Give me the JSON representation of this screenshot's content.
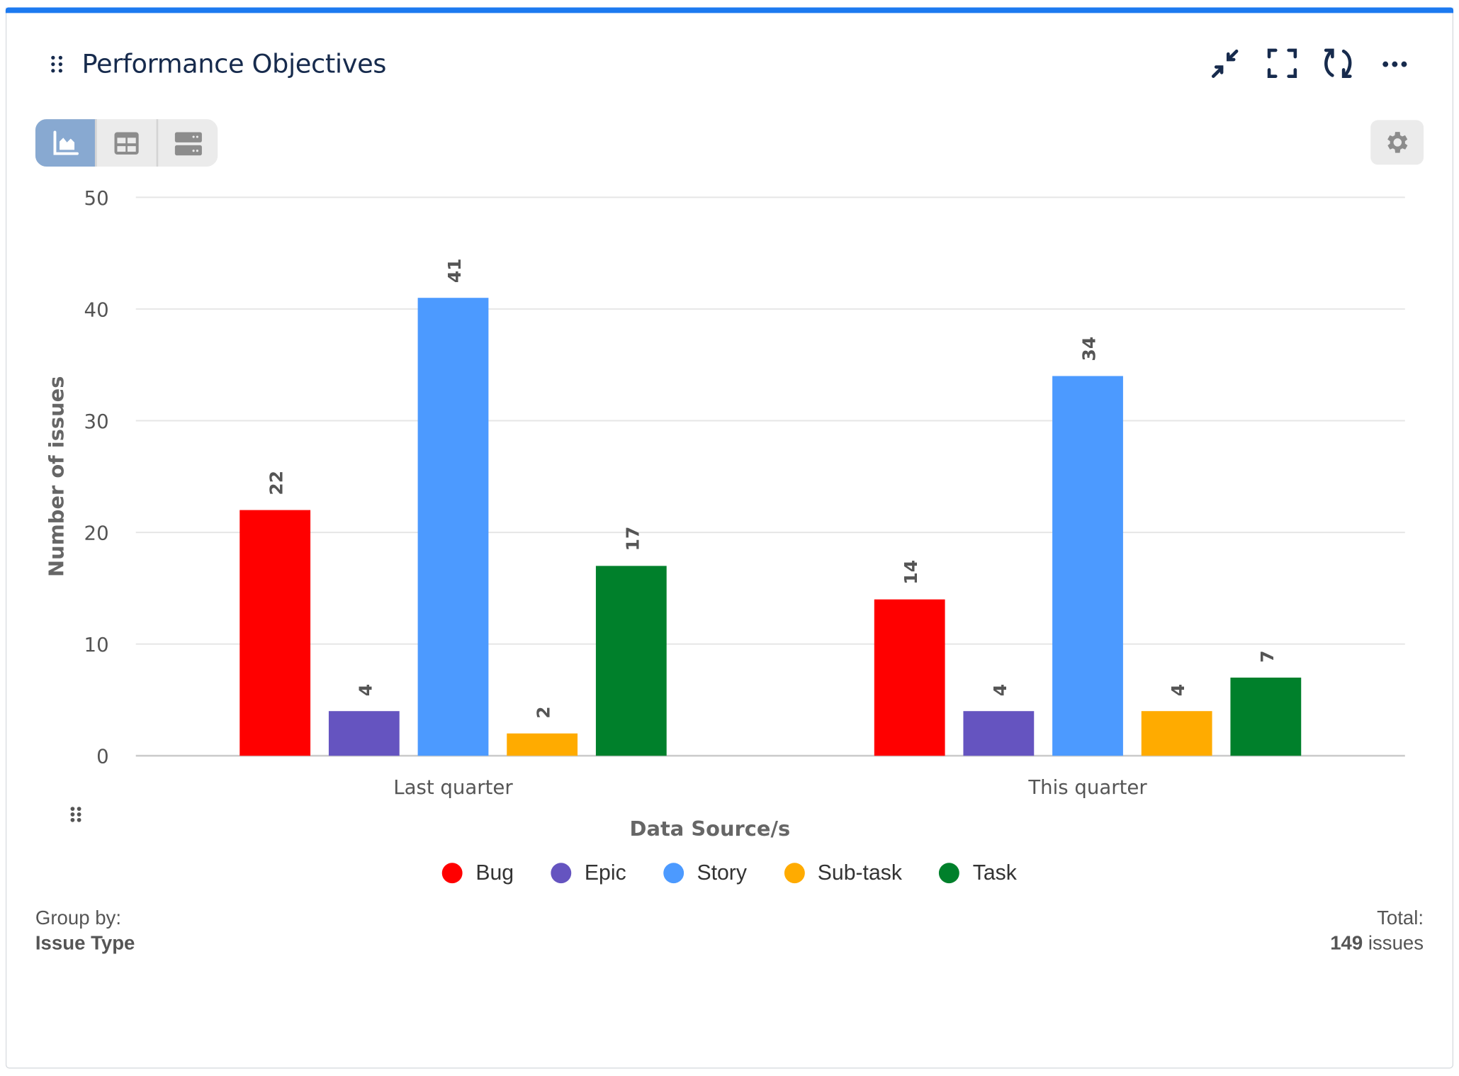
{
  "header": {
    "title": "Performance Objectives",
    "icons": [
      "drag-handle-icon",
      "collapse-icon",
      "fullscreen-icon",
      "refresh-icon",
      "more-icon"
    ]
  },
  "view_toggle": {
    "options": [
      "chart",
      "table",
      "list"
    ],
    "selected": "chart"
  },
  "settings": {
    "icon": "gear-icon"
  },
  "chart_data": {
    "type": "bar",
    "categories": [
      "Last quarter",
      "This quarter"
    ],
    "series": [
      {
        "name": "Bug",
        "color": "#ff0000",
        "values": [
          22,
          14
        ]
      },
      {
        "name": "Epic",
        "color": "#6554c0",
        "values": [
          4,
          4
        ]
      },
      {
        "name": "Story",
        "color": "#4c9aff",
        "values": [
          41,
          34
        ]
      },
      {
        "name": "Sub-task",
        "color": "#ffab00",
        "values": [
          2,
          4
        ]
      },
      {
        "name": "Task",
        "color": "#00802b",
        "values": [
          17,
          7
        ]
      }
    ],
    "xlabel": "Data Source/s",
    "ylabel": "Number of issues",
    "ylim": [
      0,
      50
    ],
    "yticks": [
      0,
      10,
      20,
      30,
      40,
      50
    ],
    "grid": true,
    "data_labels": true,
    "legend_position": "bottom"
  },
  "footer": {
    "group_by_label": "Group by:",
    "group_by_value": "Issue Type",
    "total_label": "Total:",
    "total_count": "149",
    "total_unit": " issues"
  }
}
